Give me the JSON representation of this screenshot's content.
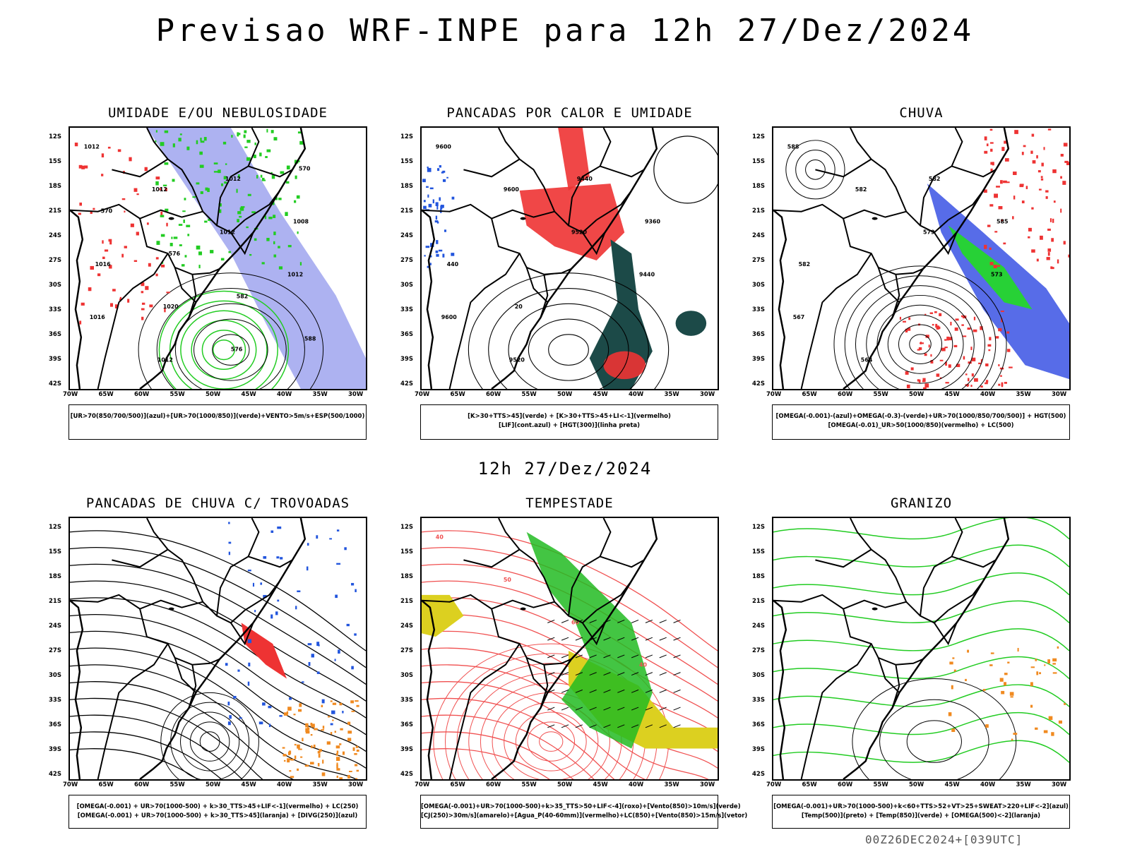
{
  "main_title": "Previsao WRF-INPE  para 12h 27/Dez/2024",
  "sub_title": "12h 27/Dez/2024",
  "footer": "00Z26DEC2024+[039UTC]",
  "lat_ticks": [
    "12S",
    "15S",
    "18S",
    "21S",
    "24S",
    "27S",
    "30S",
    "33S",
    "36S",
    "39S",
    "42S"
  ],
  "lon_ticks": [
    "70W",
    "65W",
    "60W",
    "55W",
    "50W",
    "45W",
    "40W",
    "35W",
    "30W"
  ],
  "panels": [
    {
      "title": "UMIDADE E/OU NEBULOSIDADE",
      "legend": [
        "[UR>70(850/700/500)](azul)+[UR>70(1000/850)](verde)+VENTO>5m/s+ESP(500/1000)"
      ],
      "labels": [
        "1012",
        "1012",
        "1012",
        "1012",
        "1016",
        "1012",
        "1012",
        "1008",
        "1016",
        "1020",
        "576",
        "570",
        "570",
        "576",
        "582",
        "588"
      ]
    },
    {
      "title": "PANCADAS POR CALOR E UMIDADE",
      "legend": [
        "[K>30+TTS>45](verde) + [K>30+TTS>45+LI<-1](vermelho)",
        "[LIF](cont.azul) + [HGT(300)](linha preta)"
      ],
      "labels": [
        "9600",
        "9600",
        "9520",
        "9440",
        "9600",
        "9520",
        "9440",
        "9360",
        "440",
        "20"
      ]
    },
    {
      "title": "CHUVA",
      "legend": [
        "[OMEGA(-0.001)-(azul)+OMEGA(-0.3)-(verde)+UR>70(1000/850/700/500)] + HGT(500)",
        "[OMEGA(-0.01)_UR>50(1000/850)(vermelho) + LC(500)"
      ],
      "labels": [
        "588",
        "582",
        "579",
        "573",
        "567",
        "564",
        "582",
        "585",
        "582"
      ]
    },
    {
      "title": "PANCADAS DE CHUVA C/ TROVOADAS",
      "legend": [
        "[OMEGA(-0.001) + UR>70(1000-500) + k>30_TTS>45+LIF<-1](vermelho) + LC(250)",
        "[OMEGA(-0.001) + UR>70(1000-500) + k>30_TTS>45](laranja) + [DIVG(250)](azul)"
      ],
      "labels": []
    },
    {
      "title": "TEMPESTADE",
      "legend": [
        "[OMEGA(-0.001)+UR>70(1000-500)+k>35_TTS>50+LIF<-4](roxo)+[Vento(850)>10m/s](verde)",
        "[CJ(250)>30m/s](amarelo)+[Agua_P(40-60mm)](vermelho)+LC(850)+[Vento(850)>15m/s](vetor)"
      ],
      "labels": [
        "40",
        "50",
        "60",
        "40"
      ]
    },
    {
      "title": "GRANIZO",
      "legend": [
        "[OMEGA(-0.001)+UR>70(1000-500)+k<60+TTS>52+VT>25+SWEAT>220+LIF<-2](azul)",
        "[Temp(500)](preto) + [Temp(850)](verde) + [OMEGA(500)<-2](laranja)"
      ],
      "labels": []
    }
  ],
  "colors": {
    "humid_blue": "#6a72e6",
    "humid_green": "#22cc22",
    "rain_red": "#ee3333",
    "dark_teal": "#1c4a48",
    "orange": "#f08a20",
    "yellow": "#dcd020",
    "contour_red": "#f05050"
  }
}
